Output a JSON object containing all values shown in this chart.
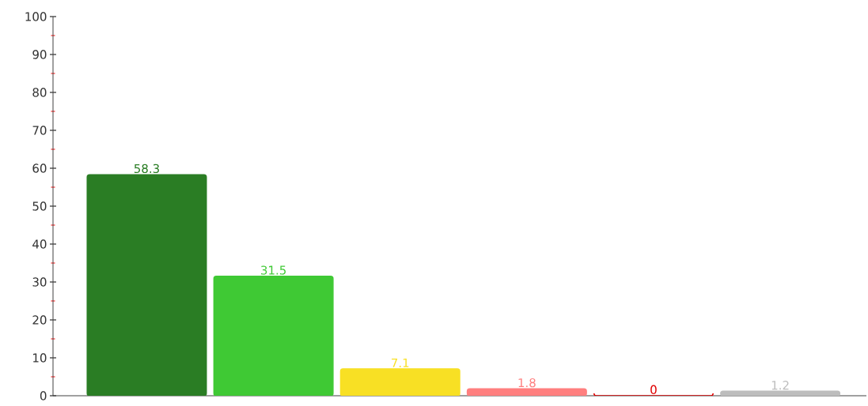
{
  "chart_data": {
    "type": "bar",
    "categories": [
      null,
      null,
      null,
      null,
      null,
      null
    ],
    "values": [
      58.3,
      31.5,
      7.1,
      1.8,
      0,
      1.2
    ],
    "colors": [
      "#2a7d24",
      "#3fc934",
      "#f8e024",
      "#ff7f7f",
      "#e00000",
      "#bdbdbd"
    ],
    "ylim": [
      0,
      100
    ],
    "yticks": [
      0,
      10,
      20,
      30,
      40,
      50,
      60,
      70,
      80,
      90,
      100
    ],
    "data_labels": true,
    "grid": false
  }
}
